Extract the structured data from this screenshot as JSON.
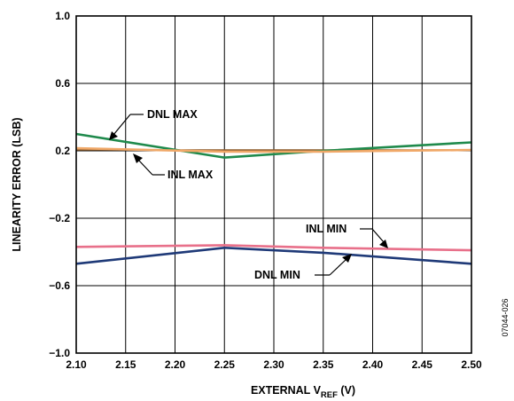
{
  "chart_data": {
    "type": "line",
    "title": "",
    "xlabel": "EXTERNAL V",
    "xlabel_sub": "REF",
    "xlabel_suffix": " (V)",
    "ylabel": "LINEARITY ERROR (LSB)",
    "xlim": [
      2.1,
      2.5
    ],
    "ylim": [
      -1.0,
      1.0
    ],
    "x_ticks": [
      2.1,
      2.15,
      2.2,
      2.25,
      2.3,
      2.35,
      2.4,
      2.45,
      2.5
    ],
    "x_tick_labels": [
      "2.10",
      "2.15",
      "2.20",
      "2.25",
      "2.30",
      "2.35",
      "2.40",
      "2.45",
      "2.50"
    ],
    "y_ticks": [
      -1.0,
      -0.6,
      -0.2,
      0.2,
      0.6,
      1.0
    ],
    "y_tick_labels": [
      "−1.0",
      "−0.6",
      "−0.2",
      "0.2",
      "0.6",
      "1.0"
    ],
    "grid": true,
    "x": [
      2.1,
      2.25,
      2.35,
      2.5
    ],
    "series": [
      {
        "name": "DNL MAX",
        "color": "#1f8a4c",
        "values": [
          0.3,
          0.16,
          0.2,
          0.25
        ]
      },
      {
        "name": "INL MAX",
        "color": "#f0a868",
        "values": [
          0.215,
          0.195,
          0.195,
          0.205
        ]
      },
      {
        "name": "INL MIN",
        "color": "#e8708a",
        "values": [
          -0.37,
          -0.36,
          -0.375,
          -0.39
        ]
      },
      {
        "name": "DNL MIN",
        "color": "#1f3a78",
        "values": [
          -0.47,
          -0.375,
          -0.405,
          -0.47
        ]
      }
    ],
    "extra_lines": [
      {
        "color": "#8b5a2b",
        "values": [
          0.205,
          0.205,
          0.205,
          0.205
        ]
      }
    ],
    "figure_id": "07044-026"
  }
}
